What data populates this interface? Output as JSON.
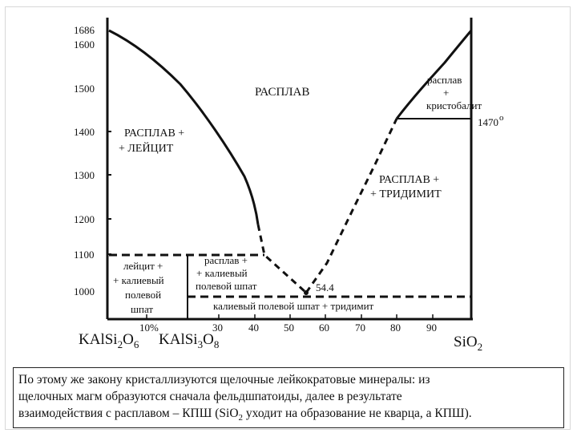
{
  "chart_data": {
    "type": "phase-diagram",
    "y_ticks": [
      "1686",
      "1600",
      "1500",
      "1400",
      "1300",
      "1200",
      "1100",
      "1000"
    ],
    "x_ticks": [
      "10%",
      "30",
      "40",
      "50",
      "60",
      "70",
      "80",
      "90"
    ],
    "x_end_left": {
      "base": "KAlSi",
      "sub1": "2",
      "mid": "O",
      "sub2": "6"
    },
    "x_end_mid": {
      "base": "KAlSi",
      "sub1": "3",
      "mid": "O",
      "sub2": "8"
    },
    "x_end_right": {
      "base": "SiO",
      "sub1": "2"
    },
    "eutectic_label": "54.4",
    "temp_1470": "1470",
    "temp_1470_sup": "o",
    "region_labels": {
      "melt": "РАСПЛАВ",
      "melt_leucite_1": "РАСПЛАВ +",
      "melt_leucite_2": "+ ЛЕЙЦИТ",
      "melt_cristobalite_1": "расплав",
      "melt_cristobalite_2": "+",
      "melt_cristobalite_3": "кристобалит",
      "melt_tridymite_1": "РАСПЛАВ +",
      "melt_tridymite_2": "+ ТРИДИМИТ",
      "leucite_kfs_1": "лейцит +",
      "leucite_kfs_2": "+ калиевый",
      "leucite_kfs_3": "полевой",
      "leucite_kfs_4": "шпат",
      "melt_kfs_1": "расплав +",
      "melt_kfs_2": "+ калиевый",
      "melt_kfs_3": "полевой шпат",
      "kfs_tridymite": "калиевый полевой шпат + тридимит"
    },
    "liquidus_left": [
      [
        0,
        1686
      ],
      [
        42,
        1200
      ]
    ],
    "liquidus_right": [
      [
        80,
        1470
      ],
      [
        100,
        1713
      ]
    ],
    "eutectic": {
      "x": 54.4,
      "t": 990
    },
    "peritectic": {
      "x": 42,
      "t": 1150
    }
  },
  "caption": {
    "line1": "По этому же закону кристаллизуются щелочные лейкократовые минералы: из",
    "line2": "щелочных магм образуются сначала фельдшпатоиды, далее в результате",
    "line3_a": "взаимодействия с расплавом – КПШ (SiO",
    "line3_sub": "2",
    "line3_b": " уходит на образование не кварца, а КПШ)."
  }
}
